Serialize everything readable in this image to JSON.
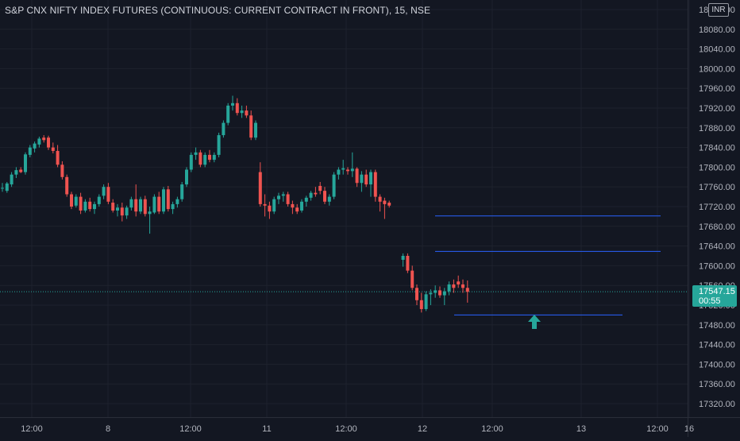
{
  "chart_data": {
    "type": "candlestick",
    "title": "S&P CNX NIFTY INDEX FUTURES (CONTINUOUS: CURRENT CONTRACT IN FRONT), 15, NSE",
    "currency": "INR",
    "y_ticks": [
      "18120.00",
      "18080.00",
      "18040.00",
      "18000.00",
      "17960.00",
      "17920.00",
      "17880.00",
      "17840.00",
      "17800.00",
      "17760.00",
      "17720.00",
      "17680.00",
      "17640.00",
      "17600.00",
      "17560.00",
      "17520.00",
      "17480.00",
      "17440.00",
      "17400.00",
      "17360.00",
      "17320.00"
    ],
    "ylim": [
      17290,
      18150
    ],
    "x_labels": [
      {
        "label": "12:00",
        "x": 10
      },
      {
        "label": "8",
        "x": 34
      },
      {
        "label": "12:00",
        "x": 60
      },
      {
        "label": "11",
        "x": 84
      },
      {
        "label": "12:00",
        "x": 109
      },
      {
        "label": "12",
        "x": 133
      },
      {
        "label": "12:00",
        "x": 155
      },
      {
        "label": "13",
        "x": 183
      },
      {
        "label": "12:00",
        "x": 207
      },
      {
        "label": "16",
        "x": 217
      }
    ],
    "last_price": {
      "value": 17547.15,
      "label": "17547.15",
      "countdown": "00:55"
    },
    "horizontal_lines": [
      {
        "price": 17701,
        "x_start": 137,
        "x_end": 208
      },
      {
        "price": 17629,
        "x_start": 137,
        "x_end": 208
      },
      {
        "price": 17500,
        "x_start": 143,
        "x_end": 196
      }
    ],
    "annotations": [
      {
        "type": "up-arrow",
        "x": 167,
        "price": 17476
      }
    ],
    "candles": [
      {
        "x": 0,
        "o": 17758,
        "h": 17768,
        "l": 17750,
        "c": 17758
      },
      {
        "x": 1,
        "o": 17752,
        "h": 17770,
        "l": 17748,
        "c": 17767
      },
      {
        "x": 2,
        "o": 17765,
        "h": 17790,
        "l": 17760,
        "c": 17785
      },
      {
        "x": 3,
        "o": 17785,
        "h": 17800,
        "l": 17778,
        "c": 17794
      },
      {
        "x": 4,
        "o": 17795,
        "h": 17800,
        "l": 17788,
        "c": 17790
      },
      {
        "x": 5,
        "o": 17790,
        "h": 17830,
        "l": 17785,
        "c": 17826
      },
      {
        "x": 6,
        "o": 17825,
        "h": 17845,
        "l": 17820,
        "c": 17840
      },
      {
        "x": 7,
        "o": 17838,
        "h": 17852,
        "l": 17830,
        "c": 17848
      },
      {
        "x": 8,
        "o": 17846,
        "h": 17862,
        "l": 17840,
        "c": 17858
      },
      {
        "x": 9,
        "o": 17860,
        "h": 17865,
        "l": 17850,
        "c": 17855
      },
      {
        "x": 10,
        "o": 17860,
        "h": 17864,
        "l": 17835,
        "c": 17840
      },
      {
        "x": 11,
        "o": 17840,
        "h": 17850,
        "l": 17828,
        "c": 17833
      },
      {
        "x": 12,
        "o": 17833,
        "h": 17845,
        "l": 17800,
        "c": 17805
      },
      {
        "x": 13,
        "o": 17805,
        "h": 17812,
        "l": 17775,
        "c": 17780
      },
      {
        "x": 14,
        "o": 17780,
        "h": 17785,
        "l": 17740,
        "c": 17745
      },
      {
        "x": 15,
        "o": 17745,
        "h": 17750,
        "l": 17715,
        "c": 17720
      },
      {
        "x": 16,
        "o": 17722,
        "h": 17745,
        "l": 17718,
        "c": 17740
      },
      {
        "x": 17,
        "o": 17740,
        "h": 17748,
        "l": 17705,
        "c": 17712
      },
      {
        "x": 18,
        "o": 17712,
        "h": 17735,
        "l": 17708,
        "c": 17730
      },
      {
        "x": 19,
        "o": 17730,
        "h": 17738,
        "l": 17710,
        "c": 17715
      },
      {
        "x": 20,
        "o": 17715,
        "h": 17730,
        "l": 17705,
        "c": 17725
      },
      {
        "x": 21,
        "o": 17725,
        "h": 17745,
        "l": 17720,
        "c": 17740
      },
      {
        "x": 22,
        "o": 17742,
        "h": 17765,
        "l": 17735,
        "c": 17760
      },
      {
        "x": 23,
        "o": 17760,
        "h": 17768,
        "l": 17725,
        "c": 17730
      },
      {
        "x": 24,
        "o": 17728,
        "h": 17735,
        "l": 17708,
        "c": 17712
      },
      {
        "x": 25,
        "o": 17712,
        "h": 17725,
        "l": 17700,
        "c": 17718
      },
      {
        "x": 26,
        "o": 17718,
        "h": 17728,
        "l": 17690,
        "c": 17702
      },
      {
        "x": 27,
        "o": 17702,
        "h": 17722,
        "l": 17695,
        "c": 17718
      },
      {
        "x": 28,
        "o": 17718,
        "h": 17740,
        "l": 17712,
        "c": 17735
      },
      {
        "x": 29,
        "o": 17735,
        "h": 17765,
        "l": 17700,
        "c": 17710
      },
      {
        "x": 30,
        "o": 17710,
        "h": 17740,
        "l": 17705,
        "c": 17735
      },
      {
        "x": 31,
        "o": 17735,
        "h": 17742,
        "l": 17700,
        "c": 17705
      },
      {
        "x": 32,
        "o": 17705,
        "h": 17720,
        "l": 17665,
        "c": 17710
      },
      {
        "x": 33,
        "o": 17708,
        "h": 17745,
        "l": 17705,
        "c": 17740
      },
      {
        "x": 34,
        "o": 17740,
        "h": 17750,
        "l": 17705,
        "c": 17710
      },
      {
        "x": 35,
        "o": 17710,
        "h": 17760,
        "l": 17705,
        "c": 17755
      },
      {
        "x": 36,
        "o": 17755,
        "h": 17762,
        "l": 17710,
        "c": 17715
      },
      {
        "x": 37,
        "o": 17715,
        "h": 17730,
        "l": 17705,
        "c": 17725
      },
      {
        "x": 38,
        "o": 17725,
        "h": 17740,
        "l": 17718,
        "c": 17735
      },
      {
        "x": 39,
        "o": 17735,
        "h": 17770,
        "l": 17730,
        "c": 17765
      },
      {
        "x": 40,
        "o": 17765,
        "h": 17800,
        "l": 17760,
        "c": 17795
      },
      {
        "x": 41,
        "o": 17795,
        "h": 17830,
        "l": 17790,
        "c": 17825
      },
      {
        "x": 42,
        "o": 17825,
        "h": 17840,
        "l": 17815,
        "c": 17830
      },
      {
        "x": 43,
        "o": 17830,
        "h": 17835,
        "l": 17800,
        "c": 17805
      },
      {
        "x": 44,
        "o": 17805,
        "h": 17830,
        "l": 17800,
        "c": 17825
      },
      {
        "x": 45,
        "o": 17825,
        "h": 17835,
        "l": 17810,
        "c": 17815
      },
      {
        "x": 46,
        "o": 17815,
        "h": 17830,
        "l": 17810,
        "c": 17825
      },
      {
        "x": 47,
        "o": 17825,
        "h": 17870,
        "l": 17820,
        "c": 17865
      },
      {
        "x": 48,
        "o": 17865,
        "h": 17895,
        "l": 17860,
        "c": 17890
      },
      {
        "x": 49,
        "o": 17890,
        "h": 17930,
        "l": 17885,
        "c": 17925
      },
      {
        "x": 50,
        "o": 17925,
        "h": 17945,
        "l": 17915,
        "c": 17930
      },
      {
        "x": 51,
        "o": 17930,
        "h": 17940,
        "l": 17905,
        "c": 17910
      },
      {
        "x": 52,
        "o": 17910,
        "h": 17925,
        "l": 17900,
        "c": 17915
      },
      {
        "x": 53,
        "o": 17915,
        "h": 17925,
        "l": 17900,
        "c": 17905
      },
      {
        "x": 54,
        "o": 17905,
        "h": 17915,
        "l": 17855,
        "c": 17860
      },
      {
        "x": 55,
        "o": 17860,
        "h": 17895,
        "l": 17855,
        "c": 17890
      },
      {
        "x": 56,
        "o": 17790,
        "h": 17810,
        "l": 17720,
        "c": 17725
      },
      {
        "x": 57,
        "o": 17725,
        "h": 17745,
        "l": 17700,
        "c": 17722
      },
      {
        "x": 58,
        "o": 17722,
        "h": 17730,
        "l": 17695,
        "c": 17710
      },
      {
        "x": 59,
        "o": 17710,
        "h": 17740,
        "l": 17705,
        "c": 17735
      },
      {
        "x": 60,
        "o": 17735,
        "h": 17748,
        "l": 17725,
        "c": 17742
      },
      {
        "x": 61,
        "o": 17742,
        "h": 17750,
        "l": 17730,
        "c": 17745
      },
      {
        "x": 62,
        "o": 17745,
        "h": 17750,
        "l": 17720,
        "c": 17725
      },
      {
        "x": 63,
        "o": 17725,
        "h": 17732,
        "l": 17705,
        "c": 17718
      },
      {
        "x": 64,
        "o": 17718,
        "h": 17725,
        "l": 17705,
        "c": 17710
      },
      {
        "x": 65,
        "o": 17712,
        "h": 17735,
        "l": 17708,
        "c": 17730
      },
      {
        "x": 66,
        "o": 17730,
        "h": 17742,
        "l": 17720,
        "c": 17738
      },
      {
        "x": 67,
        "o": 17738,
        "h": 17752,
        "l": 17732,
        "c": 17748
      },
      {
        "x": 68,
        "o": 17748,
        "h": 17760,
        "l": 17740,
        "c": 17745
      },
      {
        "x": 69,
        "o": 17762,
        "h": 17770,
        "l": 17745,
        "c": 17752
      },
      {
        "x": 70,
        "o": 17752,
        "h": 17760,
        "l": 17725,
        "c": 17730
      },
      {
        "x": 71,
        "o": 17730,
        "h": 17745,
        "l": 17722,
        "c": 17740
      },
      {
        "x": 72,
        "o": 17740,
        "h": 17790,
        "l": 17735,
        "c": 17785
      },
      {
        "x": 73,
        "o": 17785,
        "h": 17800,
        "l": 17775,
        "c": 17795
      },
      {
        "x": 74,
        "o": 17795,
        "h": 17815,
        "l": 17785,
        "c": 17798
      },
      {
        "x": 75,
        "o": 17795,
        "h": 17800,
        "l": 17785,
        "c": 17792
      },
      {
        "x": 76,
        "o": 17792,
        "h": 17830,
        "l": 17780,
        "c": 17797
      },
      {
        "x": 77,
        "o": 17797,
        "h": 17800,
        "l": 17760,
        "c": 17768
      },
      {
        "x": 78,
        "o": 17768,
        "h": 17792,
        "l": 17750,
        "c": 17785
      },
      {
        "x": 79,
        "o": 17785,
        "h": 17795,
        "l": 17760,
        "c": 17765
      },
      {
        "x": 80,
        "o": 17765,
        "h": 17795,
        "l": 17740,
        "c": 17790
      },
      {
        "x": 81,
        "o": 17790,
        "h": 17795,
        "l": 17730,
        "c": 17740
      },
      {
        "x": 82,
        "o": 17740,
        "h": 17745,
        "l": 17710,
        "c": 17730
      },
      {
        "x": 83,
        "o": 17732,
        "h": 17738,
        "l": 17695,
        "c": 17725
      },
      {
        "x": 84,
        "o": 17728,
        "h": 17732,
        "l": 17718,
        "c": 17722
      },
      {
        "x": 87,
        "o": 17612,
        "h": 17625,
        "l": 17598,
        "c": 17620
      },
      {
        "x": 88,
        "o": 17620,
        "h": 17625,
        "l": 17585,
        "c": 17590
      },
      {
        "x": 89,
        "o": 17590,
        "h": 17600,
        "l": 17550,
        "c": 17555
      },
      {
        "x": 90,
        "o": 17555,
        "h": 17562,
        "l": 17520,
        "c": 17530
      },
      {
        "x": 91,
        "o": 17530,
        "h": 17545,
        "l": 17505,
        "c": 17512
      },
      {
        "x": 92,
        "o": 17512,
        "h": 17548,
        "l": 17508,
        "c": 17542
      },
      {
        "x": 93,
        "o": 17542,
        "h": 17552,
        "l": 17520,
        "c": 17545
      },
      {
        "x": 94,
        "o": 17545,
        "h": 17560,
        "l": 17535,
        "c": 17550
      },
      {
        "x": 95,
        "o": 17550,
        "h": 17558,
        "l": 17535,
        "c": 17540
      },
      {
        "x": 96,
        "o": 17540,
        "h": 17555,
        "l": 17520,
        "c": 17548
      },
      {
        "x": 97,
        "o": 17548,
        "h": 17568,
        "l": 17540,
        "c": 17562
      },
      {
        "x": 98,
        "o": 17562,
        "h": 17572,
        "l": 17545,
        "c": 17555
      },
      {
        "x": 99,
        "o": 17568,
        "h": 17580,
        "l": 17555,
        "c": 17562
      },
      {
        "x": 100,
        "o": 17562,
        "h": 17572,
        "l": 17545,
        "c": 17555
      },
      {
        "x": 101,
        "o": 17555,
        "h": 17570,
        "l": 17525,
        "c": 17547
      }
    ]
  }
}
